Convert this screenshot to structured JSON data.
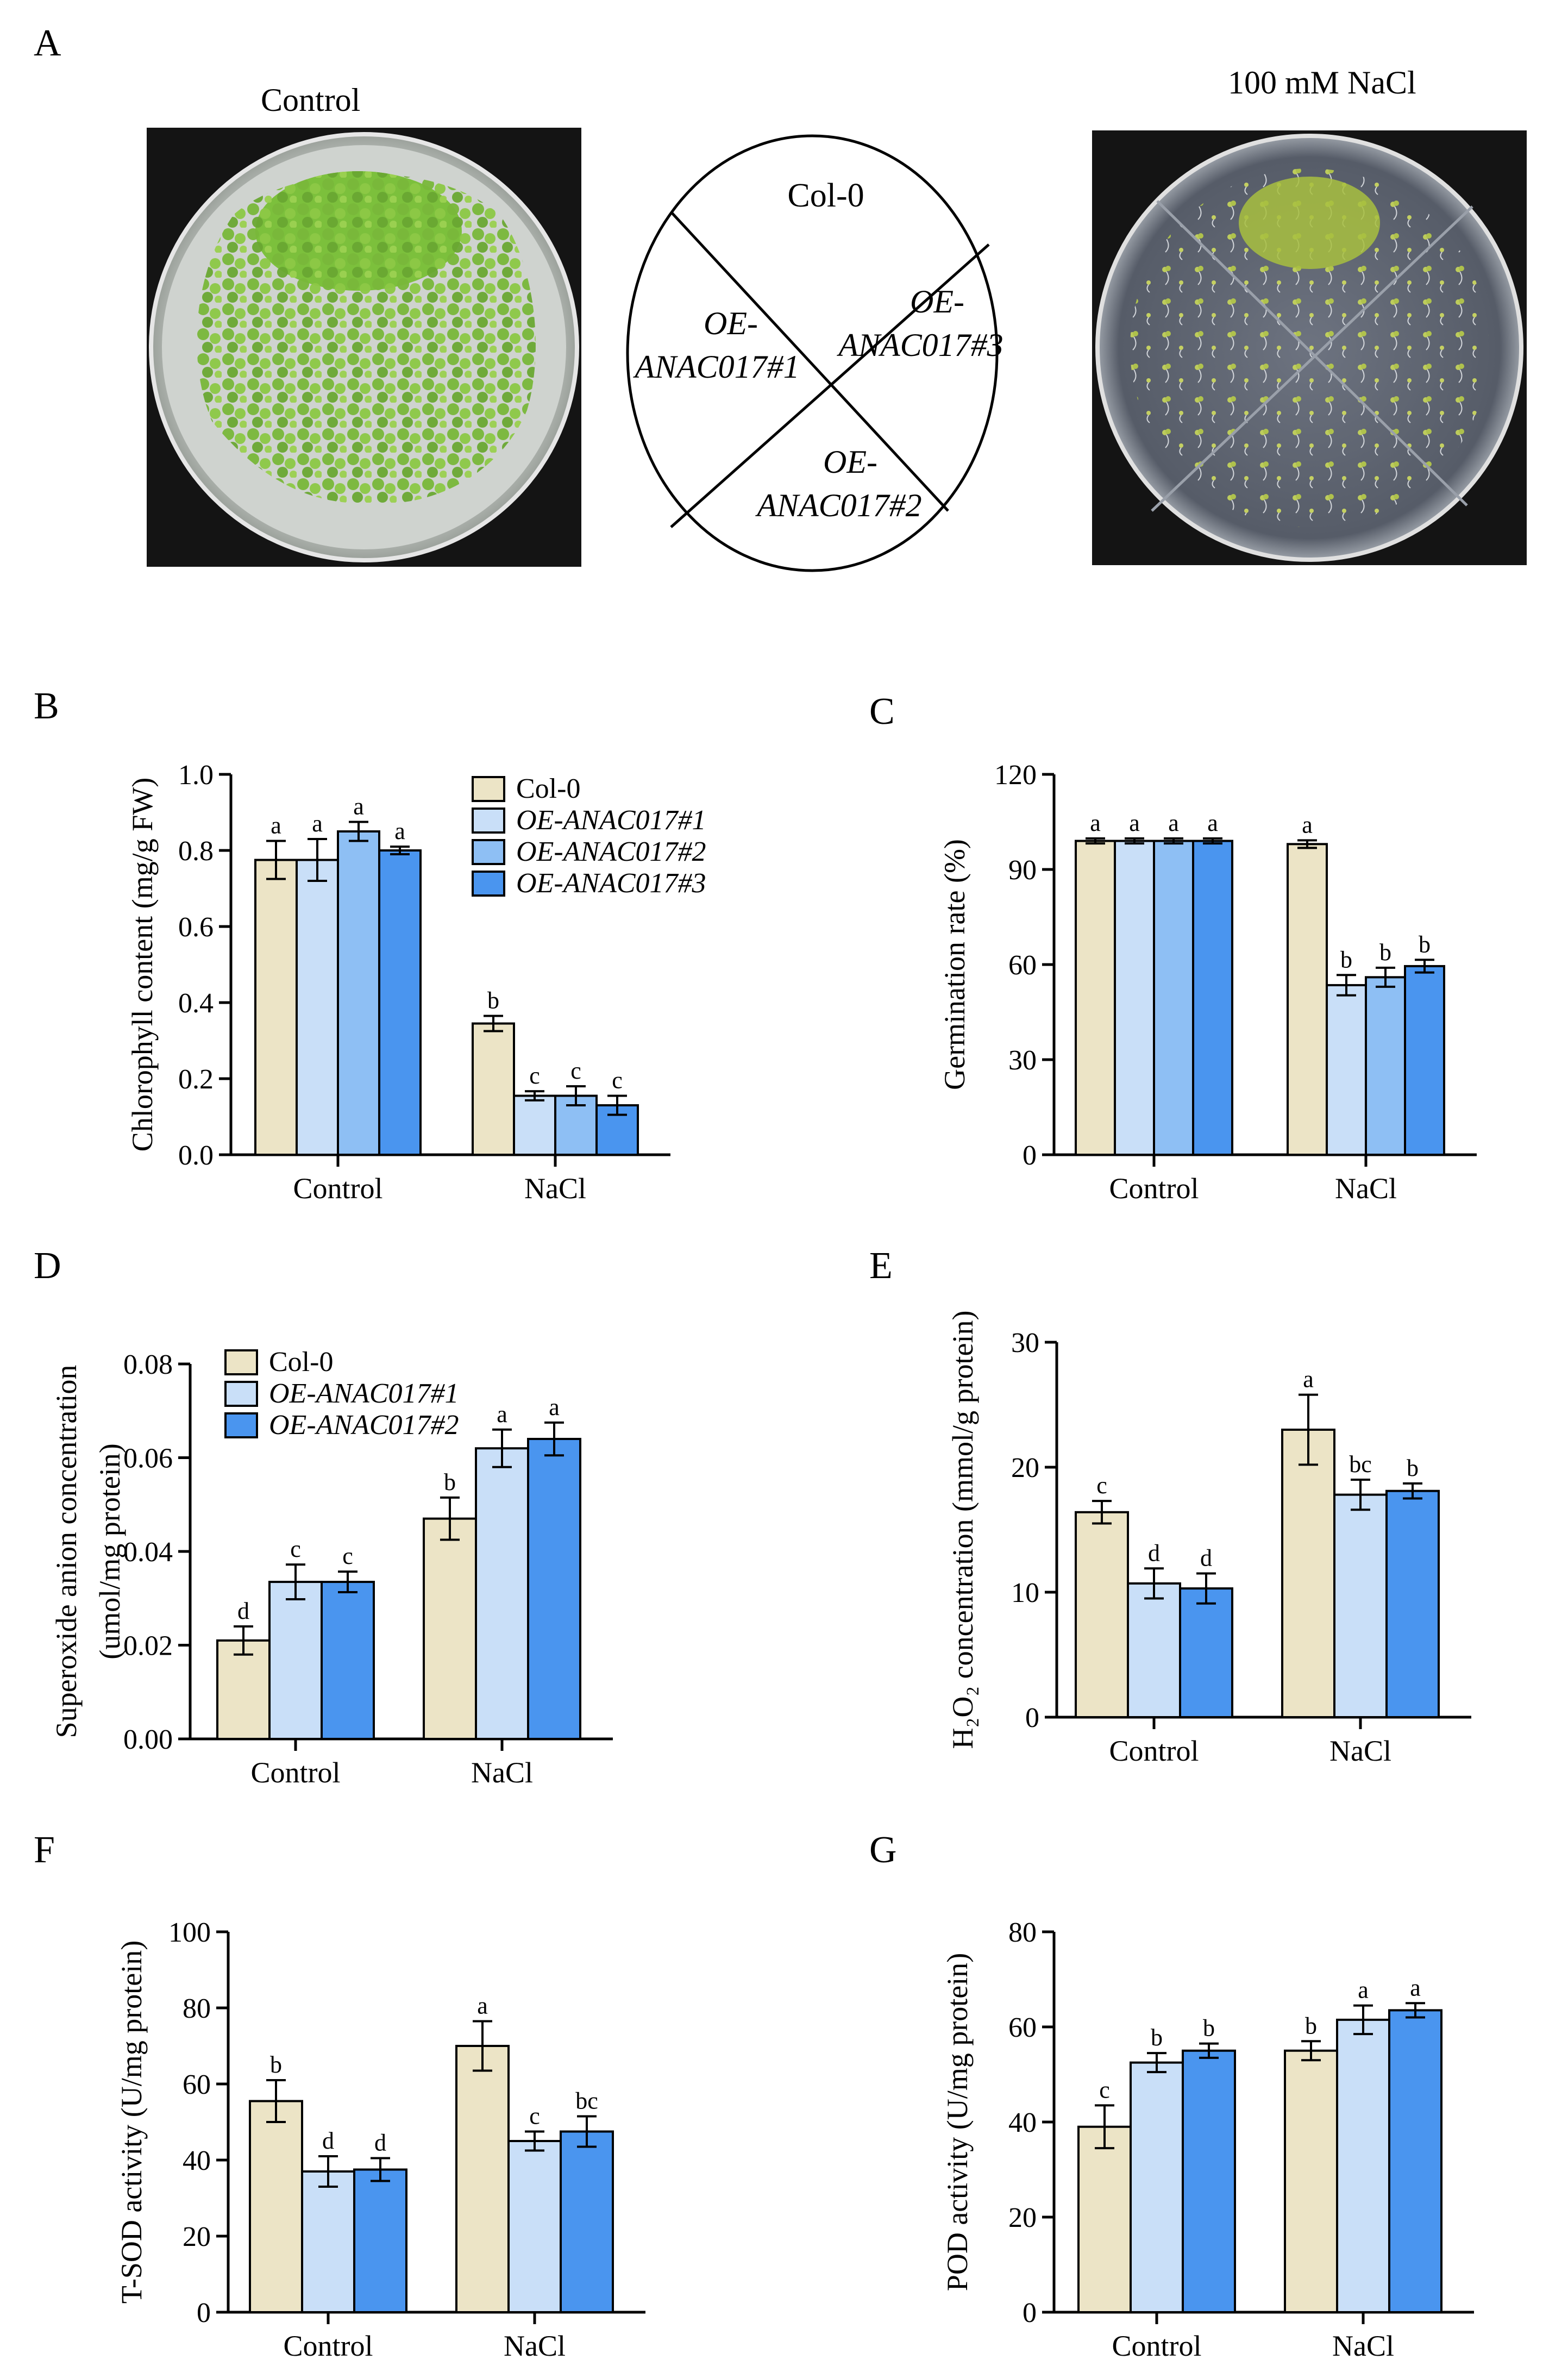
{
  "panel_letters": [
    "A",
    "B",
    "C",
    "D",
    "E",
    "F",
    "G"
  ],
  "panel_a": {
    "left_label": "Control",
    "right_label": "100 mM NaCl",
    "diagram": {
      "top": "Col-0",
      "left": [
        "OE-",
        "ANAC017#1"
      ],
      "right": [
        "OE-",
        "ANAC017#3"
      ],
      "bottom": [
        "OE-",
        "ANAC017#2"
      ]
    }
  },
  "colors": {
    "col0": "#ece4c6",
    "oe1": "#c9dff8",
    "oe2": "#8ebff4",
    "oe3": "#4a95ef"
  },
  "chart_data": [
    {
      "id": "B",
      "type": "bar",
      "ylabel": [
        "Chlorophyll content (mg/g FW)"
      ],
      "categories": [
        "Control",
        "NaCl"
      ],
      "ylim": [
        0,
        1.0
      ],
      "ticks": [
        "0.0",
        "0.2",
        "0.4",
        "0.6",
        "0.8",
        "1.0"
      ],
      "legend": [
        "Col-0",
        "OE-ANAC017#1",
        "OE-ANAC017#2",
        "OE-ANAC017#3"
      ],
      "series": [
        {
          "name": "Col-0",
          "color": "#ece4c6",
          "values": [
            0.775,
            0.345
          ],
          "errors": [
            0.05,
            0.02
          ],
          "letters": [
            "a",
            "b"
          ]
        },
        {
          "name": "OE-ANAC017#1",
          "color": "#c9dff8",
          "values": [
            0.775,
            0.155
          ],
          "errors": [
            0.055,
            0.012
          ],
          "letters": [
            "a",
            "c"
          ]
        },
        {
          "name": "OE-ANAC017#2",
          "color": "#8ebff4",
          "values": [
            0.85,
            0.155
          ],
          "errors": [
            0.025,
            0.025
          ],
          "letters": [
            "a",
            "c"
          ]
        },
        {
          "name": "OE-ANAC017#3",
          "color": "#4a95ef",
          "values": [
            0.8,
            0.13
          ],
          "errors": [
            0.01,
            0.025
          ],
          "letters": [
            "a",
            "c"
          ]
        }
      ]
    },
    {
      "id": "C",
      "type": "bar",
      "ylabel": [
        "Germination rate (%)"
      ],
      "categories": [
        "Control",
        "NaCl"
      ],
      "ylim": [
        0,
        120
      ],
      "ticks": [
        "0",
        "30",
        "60",
        "90",
        "120"
      ],
      "legend": [],
      "series": [
        {
          "name": "Col-0",
          "color": "#ece4c6",
          "values": [
            99,
            98
          ],
          "errors": [
            0.8,
            1.2
          ],
          "letters": [
            "a",
            "a"
          ]
        },
        {
          "name": "OE-ANAC017#1",
          "color": "#c9dff8",
          "values": [
            99,
            53.5
          ],
          "errors": [
            0.8,
            3.2
          ],
          "letters": [
            "a",
            "b"
          ]
        },
        {
          "name": "OE-ANAC017#2",
          "color": "#8ebff4",
          "values": [
            99,
            56
          ],
          "errors": [
            0.8,
            3.0
          ],
          "letters": [
            "a",
            "b"
          ]
        },
        {
          "name": "OE-ANAC017#3",
          "color": "#4a95ef",
          "values": [
            99,
            59.5
          ],
          "errors": [
            0.8,
            2.0
          ],
          "letters": [
            "a",
            "b"
          ]
        }
      ]
    },
    {
      "id": "D",
      "type": "bar",
      "ylabel": [
        "Superoxide anion concentration",
        "(umol/mg protein)"
      ],
      "categories": [
        "Control",
        "NaCl"
      ],
      "ylim": [
        0,
        0.08
      ],
      "ticks": [
        "0.00",
        "0.02",
        "0.04",
        "0.06",
        "0.08"
      ],
      "legend": [
        "Col-0",
        "OE-ANAC017#1",
        "OE-ANAC017#2"
      ],
      "series": [
        {
          "name": "Col-0",
          "color": "#ece4c6",
          "values": [
            0.021,
            0.047
          ],
          "errors": [
            0.003,
            0.0045
          ],
          "letters": [
            "d",
            "b"
          ]
        },
        {
          "name": "OE-ANAC017#1",
          "color": "#c9dff8",
          "values": [
            0.0335,
            0.062
          ],
          "errors": [
            0.0037,
            0.004
          ],
          "letters": [
            "c",
            "a"
          ]
        },
        {
          "name": "OE-ANAC017#2",
          "color": "#4a95ef",
          "values": [
            0.0335,
            0.064
          ],
          "errors": [
            0.0022,
            0.0035
          ],
          "letters": [
            "c",
            "a"
          ]
        }
      ]
    },
    {
      "id": "E",
      "type": "bar",
      "ylabel": [
        "H₂O₂ concentration (mmol/g protein)"
      ],
      "categories": [
        "Control",
        "NaCl"
      ],
      "ylim": [
        0,
        30
      ],
      "ticks": [
        "0",
        "10",
        "20",
        "30"
      ],
      "legend": [],
      "series": [
        {
          "name": "Col-0",
          "color": "#ece4c6",
          "values": [
            16.4,
            23.0
          ],
          "errors": [
            0.9,
            2.8
          ],
          "letters": [
            "c",
            "a"
          ]
        },
        {
          "name": "OE-ANAC017#1",
          "color": "#c9dff8",
          "values": [
            10.7,
            17.8
          ],
          "errors": [
            1.2,
            1.2
          ],
          "letters": [
            "d",
            "bc"
          ]
        },
        {
          "name": "OE-ANAC017#2",
          "color": "#4a95ef",
          "values": [
            10.3,
            18.1
          ],
          "errors": [
            1.2,
            0.6
          ],
          "letters": [
            "d",
            "b"
          ]
        }
      ]
    },
    {
      "id": "F",
      "type": "bar",
      "ylabel": [
        "T-SOD activity (U/mg protein)"
      ],
      "categories": [
        "Control",
        "NaCl"
      ],
      "ylim": [
        0,
        100
      ],
      "ticks": [
        "0",
        "20",
        "40",
        "60",
        "80",
        "100"
      ],
      "legend": [],
      "series": [
        {
          "name": "Col-0",
          "color": "#ece4c6",
          "values": [
            55.5,
            70
          ],
          "errors": [
            5.5,
            6.5
          ],
          "letters": [
            "b",
            "a"
          ]
        },
        {
          "name": "OE-ANAC017#1",
          "color": "#c9dff8",
          "values": [
            37,
            45
          ],
          "errors": [
            4.0,
            2.5
          ],
          "letters": [
            "d",
            "c"
          ]
        },
        {
          "name": "OE-ANAC017#2",
          "color": "#4a95ef",
          "values": [
            37.5,
            47.5
          ],
          "errors": [
            3.0,
            4.0
          ],
          "letters": [
            "d",
            "bc"
          ]
        }
      ]
    },
    {
      "id": "G",
      "type": "bar",
      "ylabel": [
        "POD activity (U/mg protein)"
      ],
      "categories": [
        "Control",
        "NaCl"
      ],
      "ylim": [
        0,
        80
      ],
      "ticks": [
        "0",
        "20",
        "40",
        "60",
        "80"
      ],
      "legend": [],
      "series": [
        {
          "name": "Col-0",
          "color": "#ece4c6",
          "values": [
            39,
            55
          ],
          "errors": [
            4.5,
            2.0
          ],
          "letters": [
            "c",
            "b"
          ]
        },
        {
          "name": "OE-ANAC017#1",
          "color": "#c9dff8",
          "values": [
            52.5,
            61.5
          ],
          "errors": [
            2.0,
            3.0
          ],
          "letters": [
            "b",
            "a"
          ]
        },
        {
          "name": "OE-ANAC017#2",
          "color": "#4a95ef",
          "values": [
            55,
            63.5
          ],
          "errors": [
            1.5,
            1.5
          ],
          "letters": [
            "b",
            "a"
          ]
        }
      ]
    }
  ]
}
